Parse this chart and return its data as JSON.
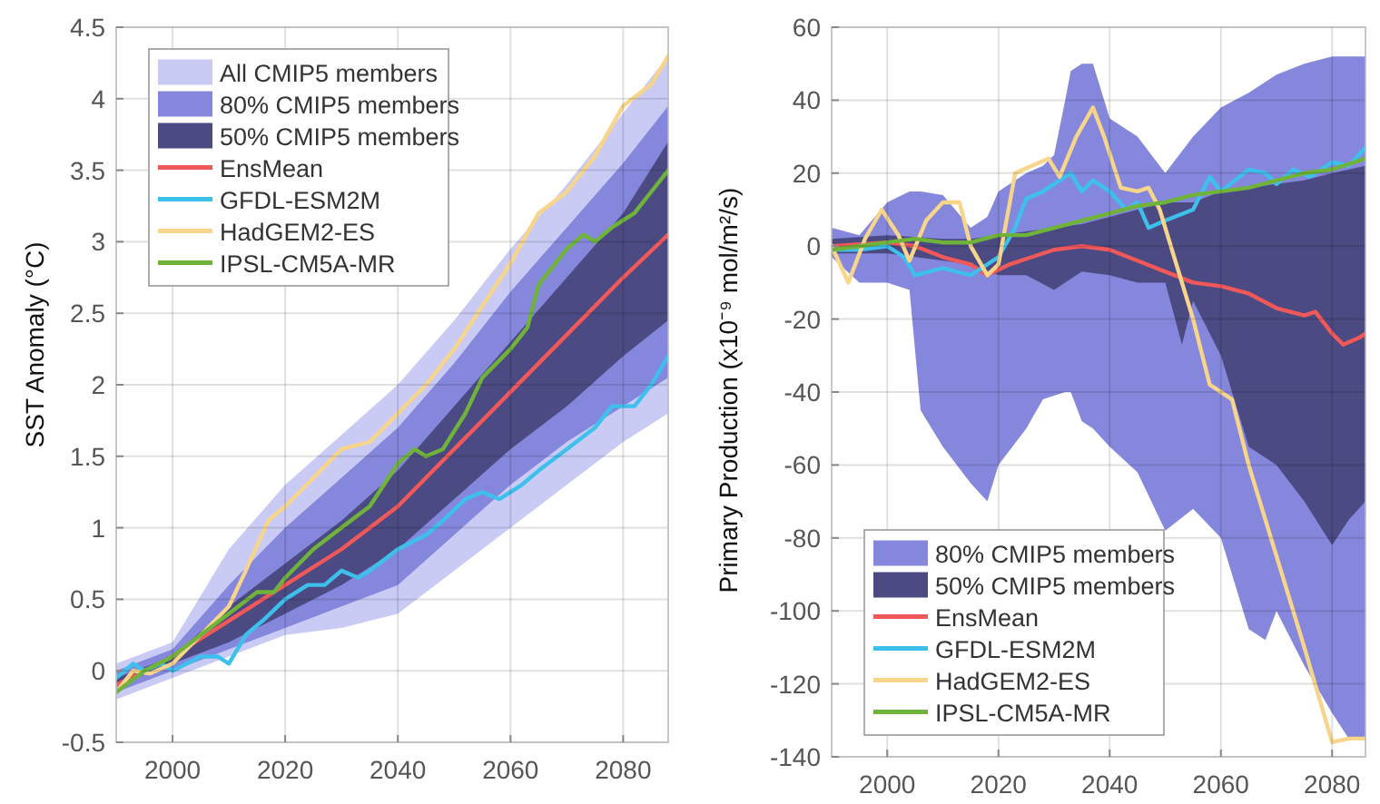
{
  "chart_data": [
    {
      "type": "line",
      "ylabel": "SST Anomaly (°C)",
      "xlim": [
        1990,
        2088
      ],
      "xticks": [
        2000,
        2020,
        2040,
        2060,
        2080
      ],
      "ylim": [
        -0.5,
        4.5
      ],
      "yticks": [
        -0.5,
        0,
        0.5,
        1,
        1.5,
        2,
        2.5,
        3,
        3.5,
        4,
        4.5
      ],
      "grid": true,
      "legend": "top left",
      "line_style": "solid",
      "marker": "none",
      "series": [
        {
          "name": "All CMIP5 members",
          "color": "#c9cbf5",
          "x": [
            1990,
            2000,
            2010,
            2020,
            2030,
            2040,
            2050,
            2060,
            2070,
            2080,
            2088
          ],
          "values": [
            null,
            null,
            null,
            null,
            null,
            null,
            null,
            null,
            null,
            null,
            null
          ],
          "lower": [
            -0.2,
            -0.05,
            0.1,
            0.25,
            0.3,
            0.4,
            0.7,
            1.0,
            1.3,
            1.6,
            1.8
          ],
          "upper": [
            0.05,
            0.2,
            0.85,
            1.3,
            1.65,
            2.0,
            2.45,
            2.95,
            3.4,
            3.9,
            4.3
          ]
        },
        {
          "name": "80% CMIP5 members",
          "color": "#8587dc",
          "x": [
            1990,
            2000,
            2010,
            2020,
            2030,
            2040,
            2050,
            2060,
            2070,
            2080,
            2088
          ],
          "values": [
            null,
            null,
            null,
            null,
            null,
            null,
            null,
            null,
            null,
            null,
            null
          ],
          "lower": [
            -0.15,
            0.0,
            0.15,
            0.3,
            0.45,
            0.6,
            0.95,
            1.3,
            1.6,
            1.85,
            2.05
          ],
          "upper": [
            0.0,
            0.15,
            0.6,
            1.0,
            1.35,
            1.7,
            2.15,
            2.65,
            3.1,
            3.55,
            3.95
          ]
        },
        {
          "name": "50% CMIP5 members",
          "color": "#4b4a82",
          "x": [
            1990,
            2000,
            2010,
            2020,
            2030,
            2040,
            2050,
            2060,
            2070,
            2080,
            2088
          ],
          "values": [
            null,
            null,
            null,
            null,
            null,
            null,
            null,
            null,
            null,
            null,
            null
          ],
          "lower": [
            -0.1,
            0.05,
            0.2,
            0.4,
            0.6,
            0.85,
            1.2,
            1.55,
            1.85,
            2.2,
            2.45
          ],
          "upper": [
            -0.05,
            0.1,
            0.45,
            0.75,
            1.05,
            1.4,
            1.85,
            2.3,
            2.75,
            3.2,
            3.7
          ]
        },
        {
          "name": "EnsMean",
          "color": "#f0585a",
          "x": [
            1990,
            2000,
            2010,
            2020,
            2030,
            2040,
            2050,
            2060,
            2070,
            2080,
            2088
          ],
          "values": [
            -0.1,
            0.1,
            0.35,
            0.6,
            0.85,
            1.15,
            1.55,
            1.95,
            2.35,
            2.75,
            3.05
          ]
        },
        {
          "name": "GFDL-ESM2M",
          "color": "#3ec0ec",
          "x": [
            1990,
            1993,
            1995,
            1998,
            2000,
            2005,
            2008,
            2010,
            2013,
            2016,
            2020,
            2024,
            2027,
            2030,
            2033,
            2035,
            2040,
            2045,
            2048,
            2052,
            2055,
            2058,
            2062,
            2065,
            2070,
            2075,
            2078,
            2082,
            2085,
            2088
          ],
          "values": [
            -0.05,
            0.05,
            0.0,
            0.05,
            0.0,
            0.1,
            0.1,
            0.05,
            0.25,
            0.35,
            0.5,
            0.6,
            0.6,
            0.7,
            0.65,
            0.7,
            0.85,
            0.95,
            1.05,
            1.2,
            1.25,
            1.2,
            1.3,
            1.4,
            1.55,
            1.7,
            1.85,
            1.85,
            2.0,
            2.2
          ]
        },
        {
          "name": "HadGEM2-ES",
          "color": "#f7d58a",
          "x": [
            1990,
            1993,
            1996,
            2000,
            2005,
            2010,
            2013,
            2017,
            2020,
            2025,
            2030,
            2035,
            2040,
            2045,
            2050,
            2055,
            2060,
            2065,
            2070,
            2075,
            2080,
            2085,
            2088
          ],
          "values": [
            -0.15,
            0.0,
            -0.02,
            0.05,
            0.25,
            0.45,
            0.7,
            1.05,
            1.15,
            1.35,
            1.55,
            1.6,
            1.8,
            2.0,
            2.25,
            2.55,
            2.85,
            3.2,
            3.35,
            3.6,
            3.95,
            4.1,
            4.3
          ]
        },
        {
          "name": "IPSL-CM5A-MR",
          "color": "#6fb33a",
          "x": [
            1990,
            1995,
            2000,
            2005,
            2010,
            2015,
            2018,
            2020,
            2025,
            2030,
            2035,
            2040,
            2043,
            2045,
            2048,
            2052,
            2055,
            2060,
            2063,
            2065,
            2070,
            2073,
            2075,
            2078,
            2082,
            2085,
            2088
          ],
          "values": [
            -0.15,
            0.0,
            0.1,
            0.25,
            0.4,
            0.55,
            0.55,
            0.65,
            0.85,
            1.0,
            1.15,
            1.45,
            1.55,
            1.5,
            1.55,
            1.8,
            2.05,
            2.25,
            2.4,
            2.7,
            2.95,
            3.05,
            3.0,
            3.1,
            3.2,
            3.35,
            3.5
          ]
        }
      ]
    },
    {
      "type": "line",
      "ylabel": "Primary Production (x10⁻⁹ mol/m²/s)",
      "xlim": [
        1990,
        2086
      ],
      "xticks": [
        2000,
        2020,
        2040,
        2060,
        2080
      ],
      "ylim": [
        -140,
        60
      ],
      "yticks": [
        -140,
        -120,
        -100,
        -80,
        -60,
        -40,
        -20,
        0,
        20,
        40,
        60
      ],
      "grid": true,
      "legend": "bottom left",
      "line_style": "solid",
      "marker": "none",
      "series": [
        {
          "name": "80% CMIP5 members",
          "color": "#8587dc",
          "x": [
            1990,
            1995,
            2000,
            2004,
            2006,
            2010,
            2015,
            2018,
            2020,
            2025,
            2028,
            2030,
            2032,
            2033,
            2035,
            2037,
            2040,
            2045,
            2050,
            2055,
            2060,
            2065,
            2068,
            2070,
            2075,
            2080,
            2083,
            2086
          ],
          "values": [
            null,
            null,
            null,
            null,
            null,
            null,
            null,
            null,
            null,
            null,
            null,
            null,
            null,
            null,
            null,
            null,
            null,
            null,
            null,
            null,
            null,
            null,
            null,
            null,
            null,
            null,
            null,
            null
          ],
          "lower": [
            -3,
            -10,
            -10,
            -12,
            -45,
            -55,
            -65,
            -70,
            -60,
            -50,
            -42,
            -41,
            -40,
            -40,
            -48,
            -50,
            -55,
            -62,
            -78,
            -72,
            -80,
            -105,
            -108,
            -100,
            -115,
            -128,
            -135,
            -135
          ],
          "upper": [
            5,
            3,
            12,
            15,
            15,
            14,
            5,
            8,
            15,
            20,
            22,
            25,
            40,
            48,
            50,
            50,
            35,
            30,
            20,
            30,
            38,
            42,
            45,
            47,
            50,
            52,
            52,
            52
          ]
        },
        {
          "name": "50% CMIP5 members",
          "color": "#4b4a82",
          "x": [
            1990,
            2000,
            2010,
            2015,
            2020,
            2025,
            2030,
            2035,
            2040,
            2045,
            2050,
            2053,
            2055,
            2060,
            2065,
            2070,
            2075,
            2080,
            2083,
            2086
          ],
          "values": [
            null,
            null,
            null,
            null,
            null,
            null,
            null,
            null,
            null,
            null,
            null,
            null,
            null,
            null,
            null,
            null,
            null,
            null,
            null,
            null
          ],
          "lower": [
            -2,
            -2,
            -4,
            -5,
            -8,
            -8,
            -12,
            -7,
            -8,
            -10,
            -10,
            -27,
            -15,
            -30,
            -55,
            -60,
            -70,
            -82,
            -75,
            -70
          ],
          "upper": [
            2,
            3,
            2,
            2,
            3,
            4,
            5,
            6,
            8,
            10,
            12,
            12,
            12,
            15,
            16,
            17,
            18,
            20,
            21,
            22
          ]
        },
        {
          "name": "EnsMean",
          "color": "#f0585a",
          "x": [
            1990,
            2000,
            2005,
            2010,
            2015,
            2018,
            2022,
            2026,
            2030,
            2035,
            2040,
            2045,
            2050,
            2055,
            2060,
            2065,
            2070,
            2075,
            2077,
            2080,
            2082,
            2085,
            2086
          ],
          "values": [
            0,
            1,
            0,
            -3,
            -5,
            -8,
            -5,
            -3,
            -1,
            0,
            -1,
            -4,
            -7,
            -10,
            -11,
            -13,
            -17,
            -19,
            -18,
            -24,
            -27,
            -25,
            -24
          ]
        },
        {
          "name": "GFDL-ESM2M",
          "color": "#3ec0ec",
          "x": [
            1990,
            1995,
            2000,
            2003,
            2005,
            2010,
            2015,
            2020,
            2023,
            2025,
            2028,
            2030,
            2033,
            2035,
            2037,
            2040,
            2043,
            2045,
            2047,
            2050,
            2055,
            2058,
            2060,
            2065,
            2068,
            2070,
            2073,
            2076,
            2080,
            2083,
            2086
          ],
          "values": [
            -1,
            -1,
            0,
            -3,
            -8,
            -6,
            -8,
            -3,
            5,
            13,
            15,
            17,
            20,
            15,
            18,
            15,
            10,
            12,
            5,
            7,
            10,
            19,
            15,
            21,
            20,
            17,
            21,
            19,
            23,
            22,
            27
          ]
        },
        {
          "name": "HadGEM2-ES",
          "color": "#f7d58a",
          "x": [
            1990,
            1993,
            1996,
            1999,
            2002,
            2004,
            2007,
            2010,
            2013,
            2015,
            2018,
            2020,
            2023,
            2026,
            2029,
            2031,
            2034,
            2037,
            2039,
            2042,
            2045,
            2047,
            2049,
            2052,
            2055,
            2058,
            2062,
            2065,
            2070,
            2075,
            2080,
            2083,
            2086
          ],
          "values": [
            0,
            -10,
            2,
            10,
            3,
            -4,
            7,
            12,
            12,
            0,
            -8,
            -5,
            20,
            22,
            24,
            19,
            30,
            38,
            30,
            16,
            15,
            16,
            10,
            -5,
            -20,
            -38,
            -42,
            -60,
            -85,
            -110,
            -136,
            -135,
            -135
          ]
        },
        {
          "name": "IPSL-CM5A-MR",
          "color": "#6fb33a",
          "x": [
            1990,
            1995,
            2000,
            2005,
            2010,
            2015,
            2020,
            2025,
            2030,
            2035,
            2040,
            2045,
            2050,
            2055,
            2060,
            2065,
            2070,
            2075,
            2080,
            2086
          ],
          "values": [
            -1,
            0,
            1,
            2,
            1,
            1,
            3,
            3,
            5,
            7,
            9,
            11,
            12,
            14,
            15,
            16,
            18,
            20,
            21,
            24
          ]
        }
      ]
    }
  ]
}
